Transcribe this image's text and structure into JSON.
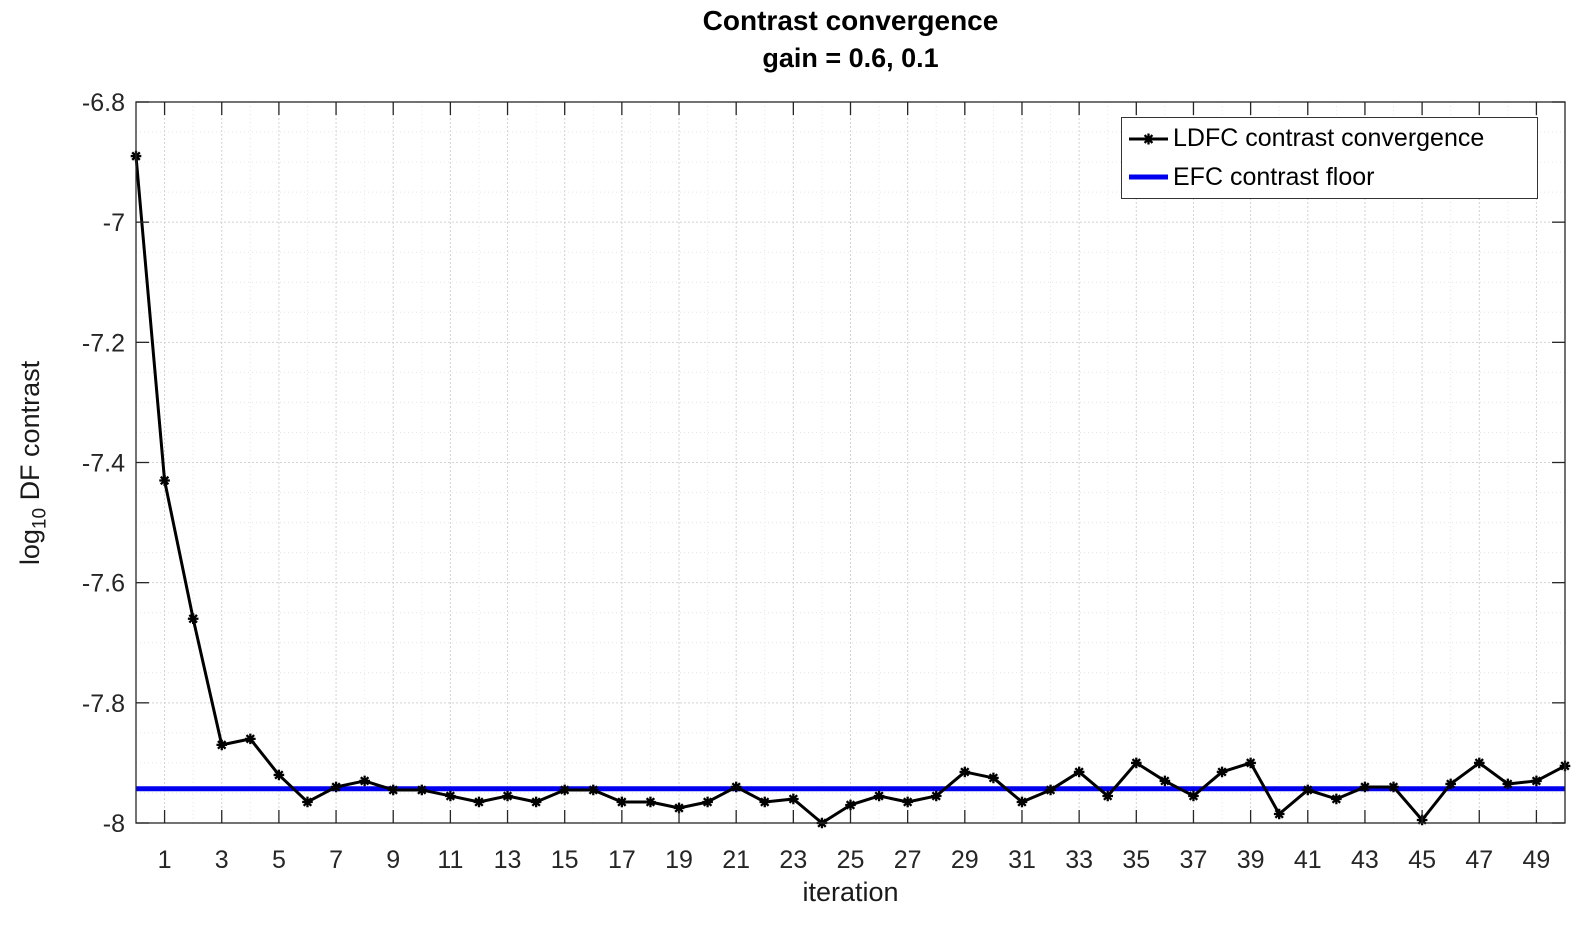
{
  "chart_data": {
    "type": "line",
    "title": "Contrast convergence",
    "subtitle": "gain = 0.6, 0.1",
    "xlabel": "iteration",
    "ylabel": "log10 DF contrast",
    "ylabel_parts": {
      "prefix": "log",
      "sub": "10",
      "suffix": " DF contrast"
    },
    "xlim": [
      0,
      50
    ],
    "ylim": [
      -8,
      -6.8
    ],
    "x_ticks": [
      1,
      3,
      5,
      7,
      9,
      11,
      13,
      15,
      17,
      19,
      21,
      23,
      25,
      27,
      29,
      31,
      33,
      35,
      37,
      39,
      41,
      43,
      45,
      47,
      49
    ],
    "x_tick_labels": [
      "1",
      "3",
      "5",
      "7",
      "9",
      "11",
      "13",
      "15",
      "17",
      "19",
      "21",
      "23",
      "25",
      "27",
      "29",
      "31",
      "33",
      "35",
      "37",
      "39",
      "41",
      "43",
      "45",
      "47",
      "49"
    ],
    "y_ticks": [
      -6.8,
      -7,
      -7.2,
      -7.4,
      -7.6,
      -7.8,
      -8
    ],
    "y_tick_labels": [
      "-6.8",
      "-7",
      "-7.2",
      "-7.4",
      "-7.6",
      "-7.8",
      "-8"
    ],
    "x_minor_step": 1,
    "y_minor_step": 0.05,
    "grid": true,
    "minor_grid": true,
    "legend_position": "top-right",
    "series": [
      {
        "name": "LDFC contrast convergence",
        "color": "#000000",
        "marker": "asterisk",
        "line_width": 3,
        "x": [
          0,
          1,
          2,
          3,
          4,
          5,
          6,
          7,
          8,
          9,
          10,
          11,
          12,
          13,
          14,
          15,
          16,
          17,
          18,
          19,
          20,
          21,
          22,
          23,
          24,
          25,
          26,
          27,
          28,
          29,
          30,
          31,
          32,
          33,
          34,
          35,
          36,
          37,
          38,
          39,
          40,
          41,
          42,
          43,
          44,
          45,
          46,
          47,
          48,
          49,
          50
        ],
        "y": [
          -6.89,
          -7.43,
          -7.66,
          -7.87,
          -7.86,
          -7.92,
          -7.965,
          -7.94,
          -7.93,
          -7.945,
          -7.945,
          -7.955,
          -7.965,
          -7.955,
          -7.965,
          -7.945,
          -7.945,
          -7.965,
          -7.965,
          -7.975,
          -7.965,
          -7.94,
          -7.965,
          -7.96,
          -8.0,
          -7.97,
          -7.955,
          -7.965,
          -7.955,
          -7.915,
          -7.925,
          -7.965,
          -7.945,
          -7.915,
          -7.955,
          -7.9,
          -7.93,
          -7.955,
          -7.915,
          -7.9,
          -7.985,
          -7.945,
          -7.96,
          -7.94,
          -7.94,
          -7.995,
          -7.935,
          -7.9,
          -7.935,
          -7.93,
          -7.905
        ]
      },
      {
        "name": "EFC contrast floor",
        "color": "#0000ee",
        "type": "hline",
        "line_width": 5,
        "y": -7.943
      }
    ]
  }
}
